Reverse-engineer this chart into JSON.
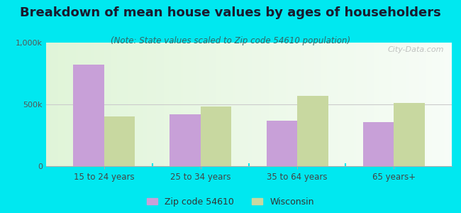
{
  "title": "Breakdown of mean house values by ages of householders",
  "subtitle": "(Note: State values scaled to Zip code 54610 population)",
  "categories": [
    "15 to 24 years",
    "25 to 34 years",
    "35 to 64 years",
    "65 years+"
  ],
  "zip_values": [
    820000,
    420000,
    370000,
    355000
  ],
  "state_values": [
    400000,
    480000,
    570000,
    510000
  ],
  "zip_color": "#c8a0d8",
  "state_color": "#c8d8a0",
  "background_color": "#00e8f0",
  "ylim": [
    0,
    1000000
  ],
  "ytick_labels": [
    "0",
    "500k",
    "1,000k"
  ],
  "zip_label": "Zip code 54610",
  "state_label": "Wisconsin",
  "title_fontsize": 13,
  "subtitle_fontsize": 8.5,
  "watermark": "City-Data.com"
}
